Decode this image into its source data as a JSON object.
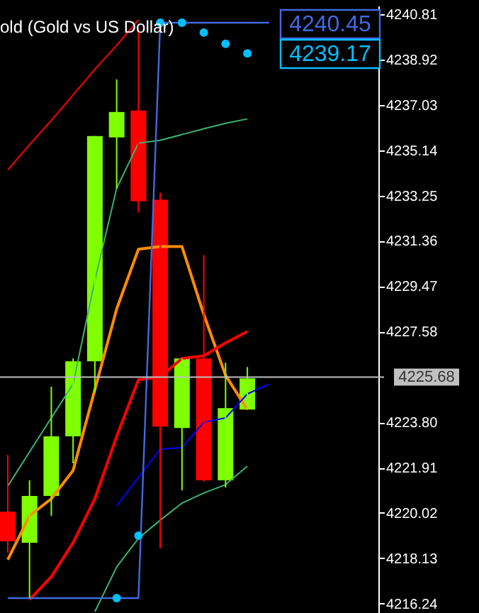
{
  "chart_data": {
    "type": "candlestick",
    "title": "old (Gold vs US Dollar)",
    "categories": [
      null,
      null,
      null,
      null,
      null,
      null,
      null,
      null,
      null,
      null,
      null,
      null,
      null,
      null,
      null,
      null,
      null
    ],
    "ohlc": [
      [
        4220.07,
        4222.44,
        4218.37,
        4218.84
      ],
      [
        4218.78,
        4221.38,
        4216.47,
        4220.73
      ],
      [
        4220.73,
        4225.28,
        4219.9,
        4223.21
      ],
      [
        4223.21,
        4226.46,
        4222.09,
        4226.34
      ],
      [
        4226.34,
        4235.73,
        4225.04,
        4235.73
      ],
      [
        4235.67,
        4238.09,
        4233.54,
        4236.73
      ],
      [
        4236.79,
        4240.22,
        4232.54,
        4233.01
      ],
      [
        4233.07,
        4233.37,
        4218.54,
        4223.62
      ],
      [
        4223.56,
        4226.46,
        4220.96,
        4226.46
      ],
      [
        4226.46,
        4230.77,
        4221.32,
        4221.38
      ],
      [
        4221.38,
        4226.28,
        4221.08,
        4224.39
      ],
      [
        4224.33,
        4226.1,
        4224.33,
        4225.63
      ],
      null,
      null,
      null,
      null,
      null
    ],
    "colors": [
      "#ff0000",
      "#7fff00",
      "#7fff00",
      "#7fff00",
      "#7fff00",
      "#7fff00",
      "#ff0000",
      "#ff0000",
      "#7fff00",
      "#ff0000",
      "#7fff00",
      "#7fff00",
      null,
      null,
      null,
      null,
      null
    ],
    "series": [
      {
        "type": "line",
        "color": "#ff0000",
        "values": [
          4234.31,
          4235.37,
          4236.38,
          4237.44,
          4238.51,
          4239.51,
          4240.57,
          null,
          null,
          null,
          null,
          null,
          null,
          null,
          null,
          null,
          null
        ]
      },
      {
        "type": "line",
        "color": "#3cb371",
        "values": [
          4221.14,
          4222.56,
          4223.98,
          4225.39,
          4229.71,
          4233.55,
          4235.43,
          4235.55,
          4235.79,
          4236.03,
          4236.26,
          4236.44,
          null,
          null,
          null,
          null,
          null
        ]
      },
      {
        "type": "line",
        "color": "#3cb371",
        "values": [
          null,
          null,
          null,
          null,
          4215.9,
          4217.77,
          4218.96,
          4219.72,
          4220.43,
          4220.85,
          4221.2,
          4221.97,
          null,
          null,
          null,
          null,
          null
        ]
      },
      {
        "type": "line",
        "color": "#ff8c00",
        "values": [
          4218.07,
          4219.9,
          4220.61,
          4221.79,
          4225.16,
          4228.52,
          4231.01,
          4231.12,
          4231.12,
          4228.29,
          4225.75,
          4224.33,
          null,
          null,
          null,
          null,
          null
        ]
      },
      {
        "type": "line",
        "color": "#ff0000",
        "values": [
          null,
          4216.41,
          4217.36,
          4218.78,
          4220.61,
          4223.21,
          4225.57,
          4225.69,
          4226.46,
          4226.57,
          4227.11,
          4227.58,
          null,
          null,
          null,
          null,
          null
        ]
      },
      {
        "type": "line",
        "color": "#0000ff",
        "values": [
          null,
          null,
          null,
          null,
          null,
          4220.31,
          4221.5,
          4222.68,
          4222.74,
          4223.8,
          4223.98,
          4224.98,
          4225.39,
          null,
          null,
          null,
          null
        ]
      },
      {
        "type": "line",
        "color": "#4169e1",
        "values": [
          4216.47,
          4216.47,
          4216.47,
          4216.47,
          4216.47,
          4216.47,
          4216.47,
          4240.45,
          4240.45,
          4240.45,
          4240.45,
          4240.45,
          4240.45,
          null,
          null,
          null,
          null
        ]
      },
      {
        "type": "scatter",
        "marker": "circle",
        "color": "#00bfff",
        "values": [
          null,
          null,
          null,
          null,
          null,
          4216.47,
          4219.07,
          4240.45,
          4240.45,
          4240.04,
          4239.57,
          4239.17,
          null,
          null,
          null,
          null,
          null
        ]
      }
    ],
    "ylim": [
      4215.85,
      4241.16
    ],
    "yticks": [
      4240.81,
      4238.92,
      4237.03,
      4235.14,
      4233.25,
      4231.36,
      4229.47,
      4227.58,
      {
        "value": 4223.8,
        "label": "4223.80"
      },
      4221.91,
      4220.02,
      4218.13,
      4216.24
    ],
    "ref_lines": [
      {
        "axis": "y",
        "value": 4225.68,
        "label": "4225.68",
        "color": "#c0c0c0"
      }
    ],
    "annotations": [
      "4240.45",
      "4239.17"
    ],
    "grid": false,
    "tick_labels": "y"
  }
}
